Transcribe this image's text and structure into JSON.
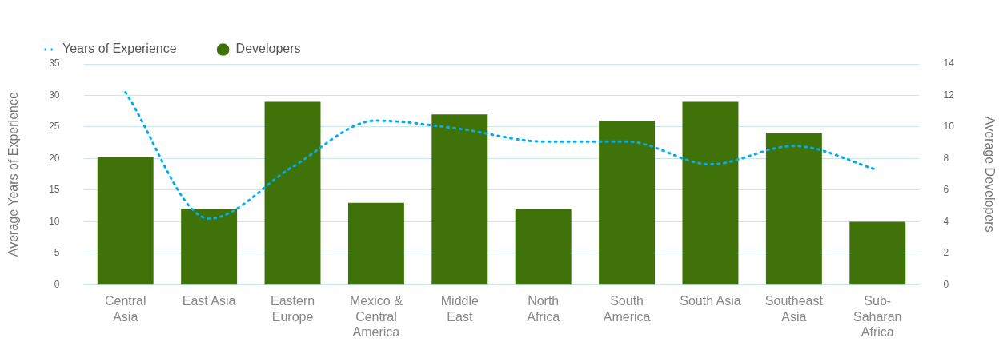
{
  "chart_data": {
    "type": "bar",
    "ylabel": "Average Years of Experience",
    "y2label": "Average Developers",
    "categories": [
      "Central Asia",
      "East Asia",
      "Eastern Europe",
      "Mexico & Central America",
      "Middle East",
      "North Africa",
      "South America",
      "South Asia",
      "Southeast Asia",
      "Sub-Saharan Africa"
    ],
    "series": [
      {
        "name": "Years of Experience",
        "type": "line",
        "color": "#00aeef",
        "line_style": "dotted",
        "marker": "none",
        "values": [
          30.5,
          10.5,
          18.7,
          26,
          24.7,
          22.7,
          22.7,
          19.1,
          22,
          18.2
        ]
      },
      {
        "name": "Developers",
        "axis": "y2",
        "color": "#3f730a",
        "values": [
          8.1,
          4.8,
          11.6,
          5.2,
          10.8,
          4.8,
          10.4,
          11.6,
          9.6,
          4
        ]
      }
    ],
    "ylim": [
      0,
      35
    ],
    "yticks": [
      0,
      5,
      10,
      15,
      20,
      25,
      30,
      35
    ],
    "y2lim": [
      0,
      14
    ],
    "y2ticks": [
      0,
      2,
      4,
      6,
      8,
      10,
      12,
      14
    ],
    "grid": "y",
    "legend": "top left"
  }
}
